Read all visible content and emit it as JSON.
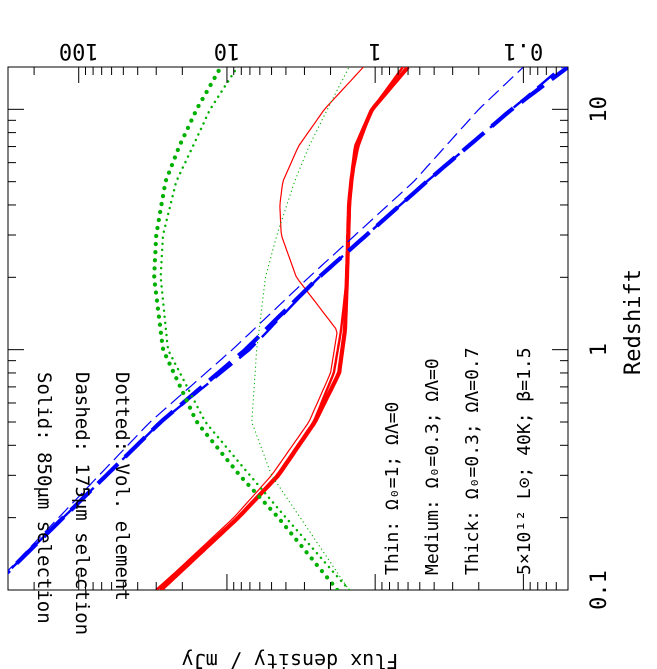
{
  "chart_data": {
    "type": "line",
    "orientation": "rotated 90 degrees clockwise (x axis runs vertically on the page)",
    "xlabel": "Redshift",
    "ylabel": "Flux density / mJy",
    "xscale": "log",
    "yscale": "log",
    "xlim": [
      0.1,
      15
    ],
    "ylim": [
      0.05,
      300
    ],
    "x_ticks": [
      "0.1",
      "1",
      "10"
    ],
    "y_ticks": [
      "0.1",
      "1",
      "10",
      "100"
    ],
    "grid": false,
    "colors": {
      "solid": "#ff0000",
      "dashed": "#0000ff",
      "dotted": "#00b000"
    },
    "legend": [
      "Solid: 850μm selection",
      "Dashed: 175μm selection",
      "Dotted: Vol. element"
    ],
    "annotations": [
      "Thin: Ω₀=1; ΩΛ=0",
      "Medium: Ω₀=0.3; ΩΛ=0",
      "Thick: Ω₀=0.3; ΩΛ=0.7",
      "5×10¹² L⊙; 40K; β=1.5"
    ],
    "series": [
      {
        "style": "solid",
        "weight": "thin",
        "color": "#ff0000",
        "x": [
          0.1,
          0.2,
          0.3,
          0.5,
          0.8,
          1.2,
          2,
          3,
          4,
          5,
          7,
          10,
          15
        ],
        "y": [
          30,
          9,
          5,
          2.8,
          2,
          1.8,
          3.4,
          4.3,
          4.4,
          4.2,
          3.3,
          2.2,
          1.2
        ]
      },
      {
        "style": "solid",
        "weight": "medium",
        "color": "#ff0000",
        "x": [
          0.1,
          0.2,
          0.3,
          0.5,
          0.8,
          1.2,
          2,
          3,
          4,
          5,
          7,
          10,
          15
        ],
        "y": [
          30,
          8.5,
          4.6,
          2.6,
          1.9,
          1.7,
          1.55,
          1.5,
          1.48,
          1.45,
          1.3,
          1.05,
          0.65
        ]
      },
      {
        "style": "solid",
        "weight": "thick",
        "color": "#ff0000",
        "x": [
          0.1,
          0.2,
          0.3,
          0.5,
          0.8,
          1.2,
          2,
          3,
          4,
          5,
          7,
          10,
          15
        ],
        "y": [
          28,
          8.4,
          4.5,
          2.55,
          1.75,
          1.6,
          1.55,
          1.52,
          1.5,
          1.45,
          1.35,
          1.05,
          0.6
        ]
      },
      {
        "style": "dashed",
        "weight": "thin",
        "color": "#0000ff",
        "x": [
          0.1,
          0.5,
          1,
          2,
          5,
          10,
          15
        ],
        "y": [
          400,
          33,
          9.2,
          2.8,
          0.55,
          0.2,
          0.1
        ]
      },
      {
        "style": "dashed",
        "weight": "medium",
        "color": "#0000ff",
        "x": [
          0.1,
          0.5,
          1,
          2,
          5,
          10,
          15
        ],
        "y": [
          400,
          28,
          7,
          2.4,
          0.45,
          0.12,
          0.055
        ]
      },
      {
        "style": "dashed",
        "weight": "thick",
        "color": "#0000ff",
        "x": [
          0.1,
          0.5,
          1,
          2,
          5,
          10,
          15
        ],
        "y": [
          400,
          28,
          7.5,
          2.4,
          0.45,
          0.12,
          0.05
        ]
      },
      {
        "style": "dotted",
        "weight": "thin",
        "color": "#00b000",
        "x": [
          0.1,
          0.2,
          0.3,
          0.5,
          1,
          2,
          3,
          5,
          7,
          10,
          15
        ],
        "y": [
          1.5,
          3.2,
          5,
          6.8,
          6.3,
          5.5,
          4.6,
          3.5,
          2.8,
          2.1,
          1.5
        ]
      },
      {
        "style": "dotted",
        "weight": "medium",
        "color": "#00b000",
        "x": [
          0.1,
          0.2,
          0.3,
          0.5,
          1,
          2,
          3,
          5,
          7,
          10,
          15
        ],
        "y": [
          1.5,
          4,
          7,
          14,
          25,
          28,
          27,
          22,
          17,
          13,
          8.5
        ]
      },
      {
        "style": "dotted",
        "weight": "thick",
        "color": "#00b000",
        "x": [
          0.1,
          0.2,
          0.3,
          0.5,
          1,
          2,
          3,
          5,
          7,
          10,
          15
        ],
        "y": [
          1.8,
          4.5,
          8.2,
          16,
          27,
          31,
          30,
          26,
          21,
          16,
          11
        ]
      }
    ]
  }
}
